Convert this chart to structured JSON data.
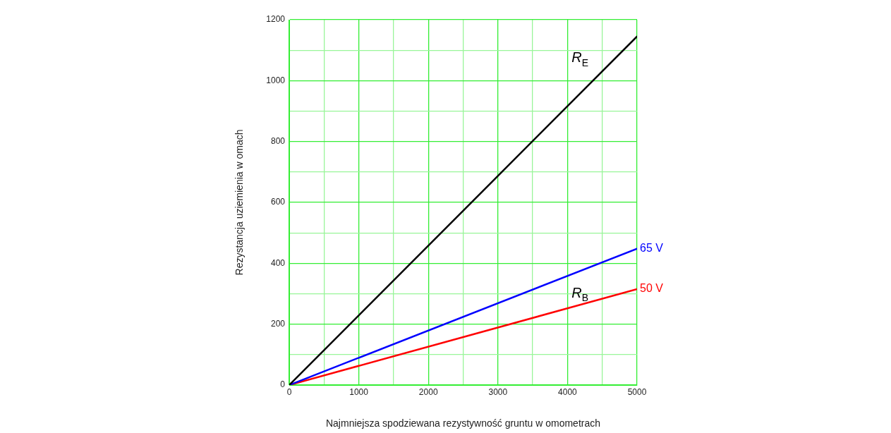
{
  "chart_data": {
    "type": "line",
    "xlabel": "Najmniejsza spodziewana rezystywność gruntu w omometrach",
    "ylabel": "Rezystancja uziemienia w omach",
    "xlim": [
      0,
      5000
    ],
    "ylim": [
      0,
      1200
    ],
    "xticks": [
      0,
      {
        "value": 500,
        "label": null
      },
      1000,
      {
        "value": 1500,
        "label": null
      },
      2000,
      {
        "value": 2500,
        "label": null
      },
      3000,
      {
        "value": 3500,
        "label": null
      },
      4000,
      {
        "value": 4500,
        "label": null
      },
      5000
    ],
    "yticks": [
      0,
      {
        "value": 100,
        "label": null
      },
      200,
      {
        "value": 300,
        "label": null
      },
      400,
      {
        "value": 500,
        "label": null
      },
      600,
      {
        "value": 700,
        "label": null
      },
      800,
      {
        "value": 900,
        "label": null
      },
      1000,
      {
        "value": 1100,
        "label": null
      },
      1200
    ],
    "x": [
      0,
      5000
    ],
    "grid": true,
    "legend": false,
    "marker": "none",
    "line_style": "solid",
    "series": [
      {
        "name": "R$_{E}$",
        "color": "#000000",
        "values": [
          0,
          1145
        ]
      },
      {
        "name": "65 V",
        "color": "#0000ff",
        "values": [
          0,
          448
        ]
      },
      {
        "name": "50 V",
        "color": "#ff0000",
        "values": [
          0,
          315
        ]
      }
    ],
    "annotations": [
      "R$_{B}$"
    ]
  }
}
